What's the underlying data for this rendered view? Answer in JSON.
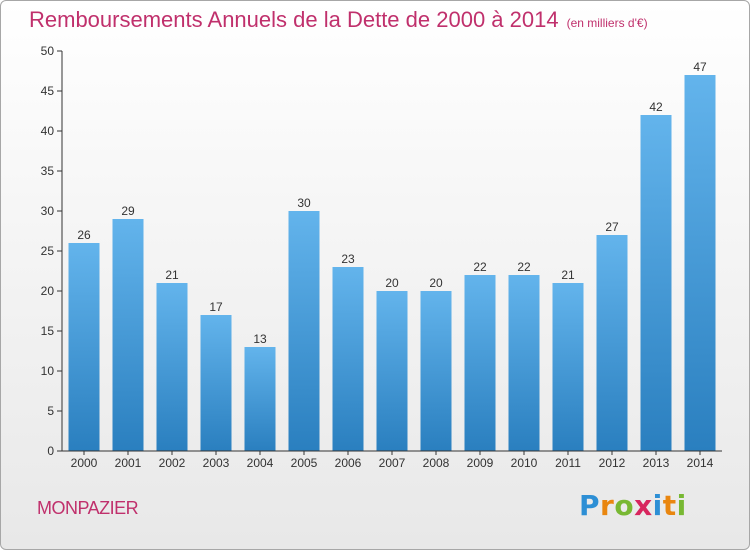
{
  "title": "Remboursements Annuels de la Dette de 2000 à 2014",
  "subtitle": "(en milliers d'€)",
  "commune": "MONPAZIER",
  "logo": {
    "letters": [
      "P",
      "r",
      "o",
      "x",
      "i",
      "t",
      "i"
    ],
    "colors": [
      "#2d8fd5",
      "#e9860f",
      "#78b833",
      "#d8265e",
      "#2d8fd5",
      "#e9860f",
      "#78b833"
    ]
  },
  "colors": {
    "bar_top": "#63b4ec",
    "bar_bottom": "#2a7fbf",
    "title": "#c0306c",
    "axis": "#333333",
    "grid": "#e0e0e0"
  },
  "chart_data": {
    "type": "bar",
    "categories": [
      "2000",
      "2001",
      "2002",
      "2003",
      "2004",
      "2005",
      "2006",
      "2007",
      "2008",
      "2009",
      "2010",
      "2011",
      "2012",
      "2013",
      "2014"
    ],
    "values": [
      26,
      29,
      21,
      17,
      13,
      30,
      23,
      20,
      20,
      22,
      22,
      21,
      27,
      42,
      47
    ],
    "yticks": [
      0,
      5,
      10,
      15,
      20,
      25,
      30,
      35,
      40,
      45,
      50
    ],
    "ylim": [
      0,
      50
    ],
    "grid": false,
    "data_labels": true
  }
}
